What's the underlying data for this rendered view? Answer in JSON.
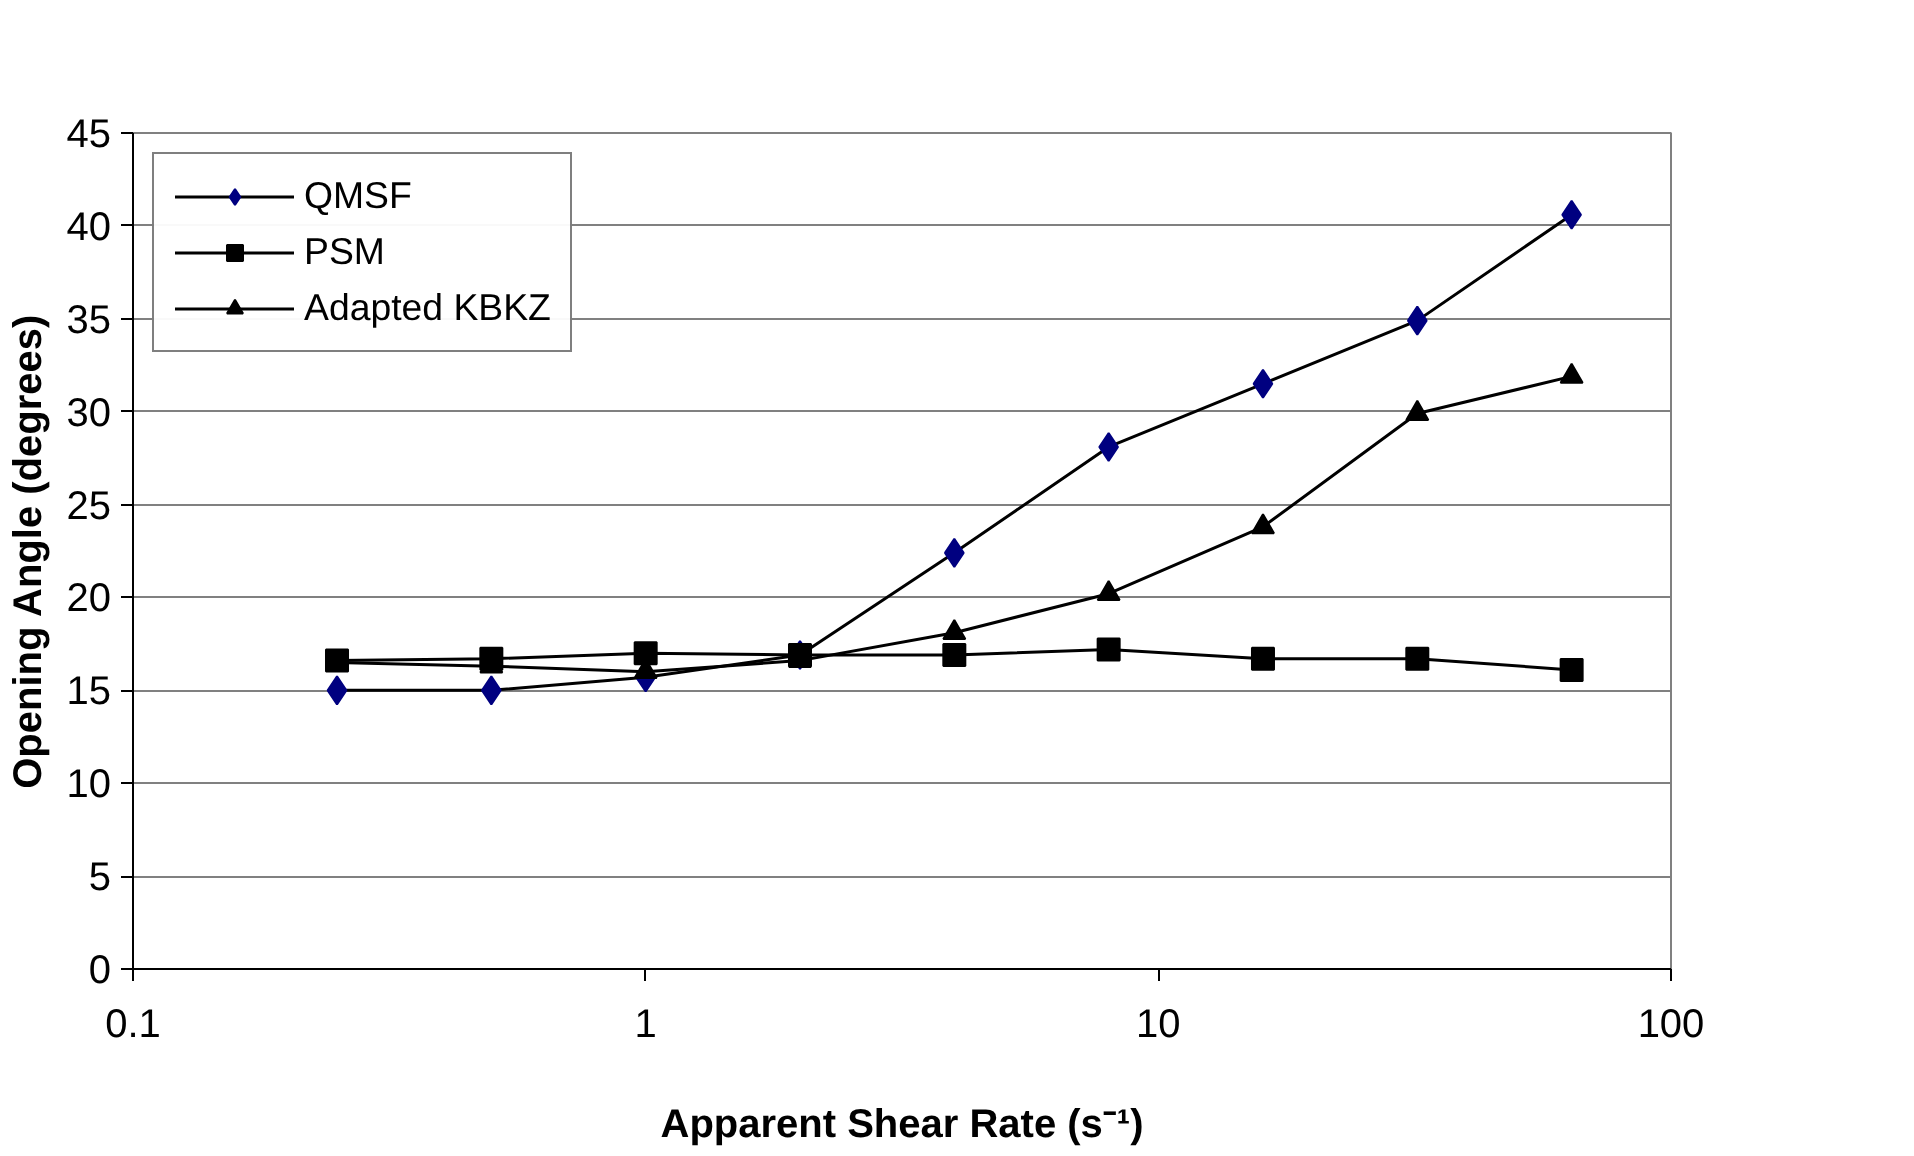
{
  "chart_data": {
    "type": "line",
    "xlabel": "Apparent Shear Rate (s⁻¹)",
    "ylabel": "Opening Angle (degrees)",
    "x": [
      0.25,
      0.5,
      1,
      2,
      4,
      8,
      16,
      32,
      64
    ],
    "series": [
      {
        "name": "QMSF",
        "color": "#000080",
        "marker": "diamond",
        "values": [
          15,
          15,
          15.7,
          16.9,
          22.4,
          28.1,
          31.5,
          34.9,
          40.6
        ]
      },
      {
        "name": "PSM",
        "color": "#000000",
        "marker": "square",
        "values": [
          16.6,
          16.7,
          17.0,
          16.9,
          16.9,
          17.2,
          16.7,
          16.7,
          16.1
        ]
      },
      {
        "name": "Adapted KBKZ",
        "color": "#000000",
        "marker": "triangle",
        "values": [
          16.5,
          16.3,
          16.0,
          16.6,
          18.1,
          20.2,
          23.8,
          29.9,
          31.9
        ]
      }
    ],
    "log": "x",
    "xlim": [
      0.1,
      100
    ],
    "xticks": [
      0.1,
      1,
      10,
      100
    ],
    "ylim": [
      0,
      45
    ],
    "yticks": [
      0,
      5,
      10,
      15,
      20,
      25,
      30,
      35,
      40,
      45
    ],
    "grid": "y",
    "legend": "top left",
    "line_style": "solid"
  }
}
